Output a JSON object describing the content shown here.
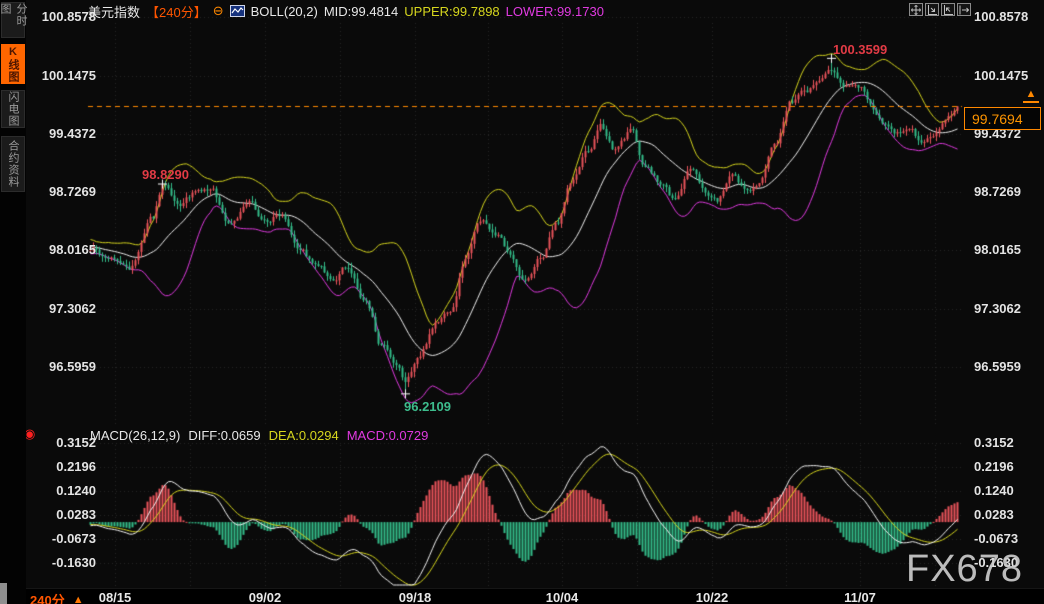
{
  "sidebar": {
    "tabs": [
      {
        "label": "分时图",
        "active": false
      },
      {
        "label": "K线图",
        "active": true
      },
      {
        "label": "闪电图",
        "active": false
      },
      {
        "label": "合约资料",
        "active": false
      }
    ]
  },
  "header": {
    "title": "美元指数",
    "period": "【240分】",
    "collapse_icon": "⊖",
    "boll_label": "BOLL(20,2)",
    "mid": "MID:99.4814",
    "upper": "UPPER:99.7898",
    "lower": "LOWER:99.1730"
  },
  "toolbar": {
    "icons": [
      "pan",
      "zoom-y",
      "zoom-x",
      "reset-zoom"
    ]
  },
  "price_box": {
    "value": "99.7694",
    "marker": "▲"
  },
  "annotations": {
    "high": "100.3599",
    "left_high": "98.8290",
    "low": "96.2109"
  },
  "macd_header": {
    "name": "MACD(26,12,9)",
    "diff": "DIFF:0.0659",
    "dea": "DEA:0.0294",
    "macd": "MACD:0.0729",
    "live_icon": "◉"
  },
  "bottom": {
    "period": "240分",
    "triangle": "▲"
  },
  "watermark": "FX678",
  "colors": {
    "up": "#e8535a",
    "down": "#33bb88",
    "boll_mid": "#f0f0f0",
    "boll_upper": "#d6d61e",
    "boll_lower": "#e03ae0",
    "macd_diff": "#f5f5f5",
    "macd_dea": "#d6d61e",
    "hist_up": "#e8535a",
    "hist_down": "#33bb88",
    "accent": "#ff8800",
    "grid": "#262626",
    "cross": "#ffffff"
  },
  "chart_data": {
    "type": "candlestick+macd",
    "symbol": "美元指数",
    "interval": "240分",
    "price_axis_ticks": [
      "100.8578",
      "100.1475",
      "99.4372",
      "98.7269",
      "98.0165",
      "97.3062",
      "96.5959"
    ],
    "price_axis_values": [
      100.8578,
      100.1475,
      99.4372,
      98.7269,
      98.0165,
      97.3062,
      96.5959
    ],
    "macd_axis_ticks": [
      "0.3152",
      "0.2196",
      "0.1240",
      "0.0283",
      "-0.0673",
      "-0.1630"
    ],
    "macd_axis_values": [
      0.3152,
      0.2196,
      0.124,
      0.0283,
      -0.0673,
      -0.163
    ],
    "x_axis_ticks": [
      "08/15",
      "09/02",
      "09/18",
      "10/04",
      "10/22",
      "11/07"
    ],
    "boll": {
      "period": 20,
      "k": 2,
      "mid": 99.4814,
      "upper": 99.7898,
      "lower": 99.173
    },
    "macd": {
      "fast": 26,
      "mid": 12,
      "signal": 9,
      "diff": 0.0659,
      "dea": 0.0294,
      "hist": 0.0729
    },
    "last_price": 99.7694,
    "marked_high": 100.3599,
    "marked_left_high": 98.829,
    "marked_low": 96.2109,
    "close_waypoints": [
      [
        0,
        98.05
      ],
      [
        0.017,
        97.95
      ],
      [
        0.046,
        97.78
      ],
      [
        0.071,
        98.32
      ],
      [
        0.084,
        98.78
      ],
      [
        0.101,
        98.45
      ],
      [
        0.121,
        98.62
      ],
      [
        0.14,
        98.66
      ],
      [
        0.159,
        98.3
      ],
      [
        0.182,
        98.55
      ],
      [
        0.201,
        98.35
      ],
      [
        0.222,
        98.46
      ],
      [
        0.241,
        98.15
      ],
      [
        0.262,
        97.85
      ],
      [
        0.279,
        97.58
      ],
      [
        0.297,
        97.76
      ],
      [
        0.316,
        97.35
      ],
      [
        0.336,
        96.83
      ],
      [
        0.353,
        96.48
      ],
      [
        0.363,
        96.3
      ],
      [
        0.379,
        96.65
      ],
      [
        0.399,
        97.12
      ],
      [
        0.416,
        97.28
      ],
      [
        0.433,
        97.92
      ],
      [
        0.448,
        98.44
      ],
      [
        0.468,
        98.26
      ],
      [
        0.485,
        97.92
      ],
      [
        0.502,
        97.66
      ],
      [
        0.521,
        97.94
      ],
      [
        0.538,
        98.32
      ],
      [
        0.554,
        98.85
      ],
      [
        0.573,
        99.18
      ],
      [
        0.589,
        99.46
      ],
      [
        0.606,
        99.22
      ],
      [
        0.623,
        99.43
      ],
      [
        0.64,
        99.02
      ],
      [
        0.659,
        98.78
      ],
      [
        0.674,
        98.6
      ],
      [
        0.691,
        98.95
      ],
      [
        0.708,
        98.72
      ],
      [
        0.722,
        98.62
      ],
      [
        0.738,
        98.88
      ],
      [
        0.755,
        98.68
      ],
      [
        0.772,
        98.82
      ],
      [
        0.79,
        99.28
      ],
      [
        0.807,
        99.8
      ],
      [
        0.824,
        100.02
      ],
      [
        0.841,
        100.12
      ],
      [
        0.855,
        100.22
      ],
      [
        0.872,
        100.02
      ],
      [
        0.89,
        99.92
      ],
      [
        0.908,
        99.6
      ],
      [
        0.927,
        99.44
      ],
      [
        0.944,
        99.52
      ],
      [
        0.956,
        99.36
      ],
      [
        0.975,
        99.48
      ],
      [
        0.991,
        99.62
      ],
      [
        1,
        99.75
      ]
    ]
  }
}
